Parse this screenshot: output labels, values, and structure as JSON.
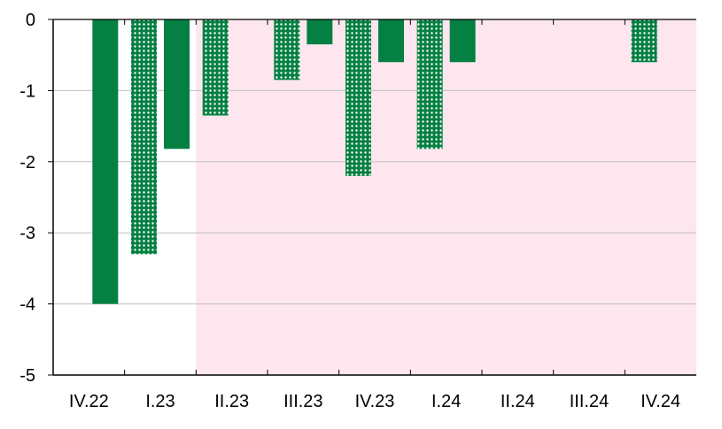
{
  "chart_data": {
    "type": "bar",
    "categories": [
      "IV.22",
      "I.23",
      "II.23",
      "III.23",
      "IV.23",
      "I.24",
      "II.24",
      "III.24",
      "IV.24"
    ],
    "series": [
      {
        "style": "dotted",
        "color": "#058043",
        "values": [
          null,
          -3.3,
          -1.35,
          -0.85,
          -2.2,
          -1.82,
          null,
          null,
          -0.6
        ]
      },
      {
        "style": "solid",
        "color": "#058043",
        "values": [
          -4.0,
          -1.82,
          null,
          -0.35,
          -0.6,
          -0.6,
          null,
          null,
          null
        ]
      }
    ],
    "ylim": [
      -5,
      0
    ],
    "yticks": [
      "0",
      "-1",
      "-2",
      "-3",
      "-4",
      "-5"
    ],
    "grid": true,
    "shaded_region": {
      "from_category": "II.23",
      "to_category": "IV.24",
      "color": "#fde6ee"
    }
  }
}
